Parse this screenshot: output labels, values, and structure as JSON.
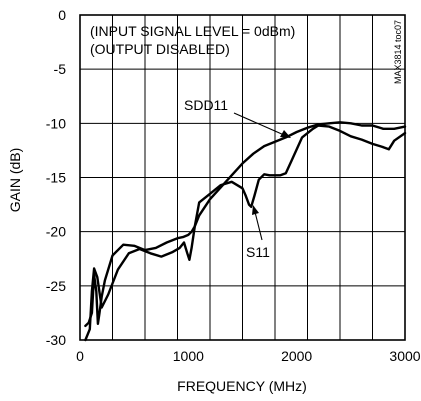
{
  "chart_data": {
    "type": "line",
    "title": "",
    "xlabel": "FREQUENCY (MHz)",
    "ylabel": "GAIN (dB)",
    "xlim": [
      0,
      3000
    ],
    "ylim": [
      -30,
      0
    ],
    "grid": true,
    "x_ticks": [
      0,
      1000,
      2000,
      3000
    ],
    "x_tick_labels": [
      "0",
      "1000",
      "2000",
      "3000"
    ],
    "y_ticks": [
      0,
      -5,
      -10,
      -15,
      -20,
      -25,
      -30
    ],
    "y_tick_labels": [
      "0",
      "-5",
      "-10",
      "-15",
      "-20",
      "-25",
      "-30"
    ],
    "annotations": [
      "(INPUT SIGNAL LEVEL = 0dBm)",
      "(OUTPUT DISABLED)"
    ],
    "side_label": "MAX3814 toc07",
    "line_color": "#000000",
    "series": [
      {
        "name": "SDD11",
        "x": [
          50,
          80,
          110,
          130,
          150,
          165,
          180,
          200,
          230,
          300,
          400,
          500,
          600,
          700,
          800,
          900,
          950,
          1000,
          1030,
          1060,
          1100,
          1200,
          1300,
          1400,
          1500,
          1600,
          1700,
          1800,
          1900,
          2000,
          2100,
          2200,
          2300,
          2400,
          2500,
          2600,
          2700,
          2800,
          2900,
          3000
        ],
        "y": [
          -28.7,
          -28.4,
          -27.5,
          -24.0,
          -25.5,
          -28.5,
          -27.5,
          -26.0,
          -24.5,
          -22.2,
          -21.2,
          -21.3,
          -21.7,
          -21.5,
          -21.0,
          -20.6,
          -20.5,
          -20.3,
          -20.0,
          -19.5,
          -18.5,
          -17.0,
          -15.9,
          -14.8,
          -13.7,
          -12.8,
          -12.1,
          -11.7,
          -11.3,
          -10.8,
          -10.4,
          -10.1,
          -10.0,
          -9.9,
          -10.0,
          -10.2,
          -10.2,
          -10.5,
          -10.5,
          -10.3
        ]
      },
      {
        "name": "S11",
        "x": [
          50,
          90,
          110,
          130,
          160,
          200,
          260,
          350,
          450,
          550,
          650,
          750,
          850,
          920,
          960,
          990,
          1010,
          1030,
          1060,
          1100,
          1200,
          1300,
          1400,
          1500,
          1530,
          1560,
          1580,
          1610,
          1650,
          1700,
          1750,
          1800,
          1850,
          1900,
          1950,
          2050,
          2150,
          2200,
          2300,
          2400,
          2500,
          2600,
          2700,
          2800,
          2850,
          2900,
          3000
        ],
        "y": [
          -30,
          -29.0,
          -25.5,
          -23.4,
          -24.2,
          -27.0,
          -25.8,
          -23.5,
          -22.0,
          -21.6,
          -22.0,
          -22.3,
          -21.9,
          -21.5,
          -21.0,
          -22.0,
          -22.6,
          -21.5,
          -19.5,
          -17.3,
          -16.5,
          -15.7,
          -15.4,
          -16.0,
          -16.7,
          -17.5,
          -17.7,
          -16.7,
          -15.2,
          -14.7,
          -14.8,
          -14.8,
          -14.8,
          -14.6,
          -13.5,
          -11.3,
          -10.5,
          -10.2,
          -10.3,
          -10.7,
          -11.2,
          -11.5,
          -11.9,
          -12.2,
          -12.4,
          -11.6,
          -10.9
        ]
      }
    ]
  }
}
